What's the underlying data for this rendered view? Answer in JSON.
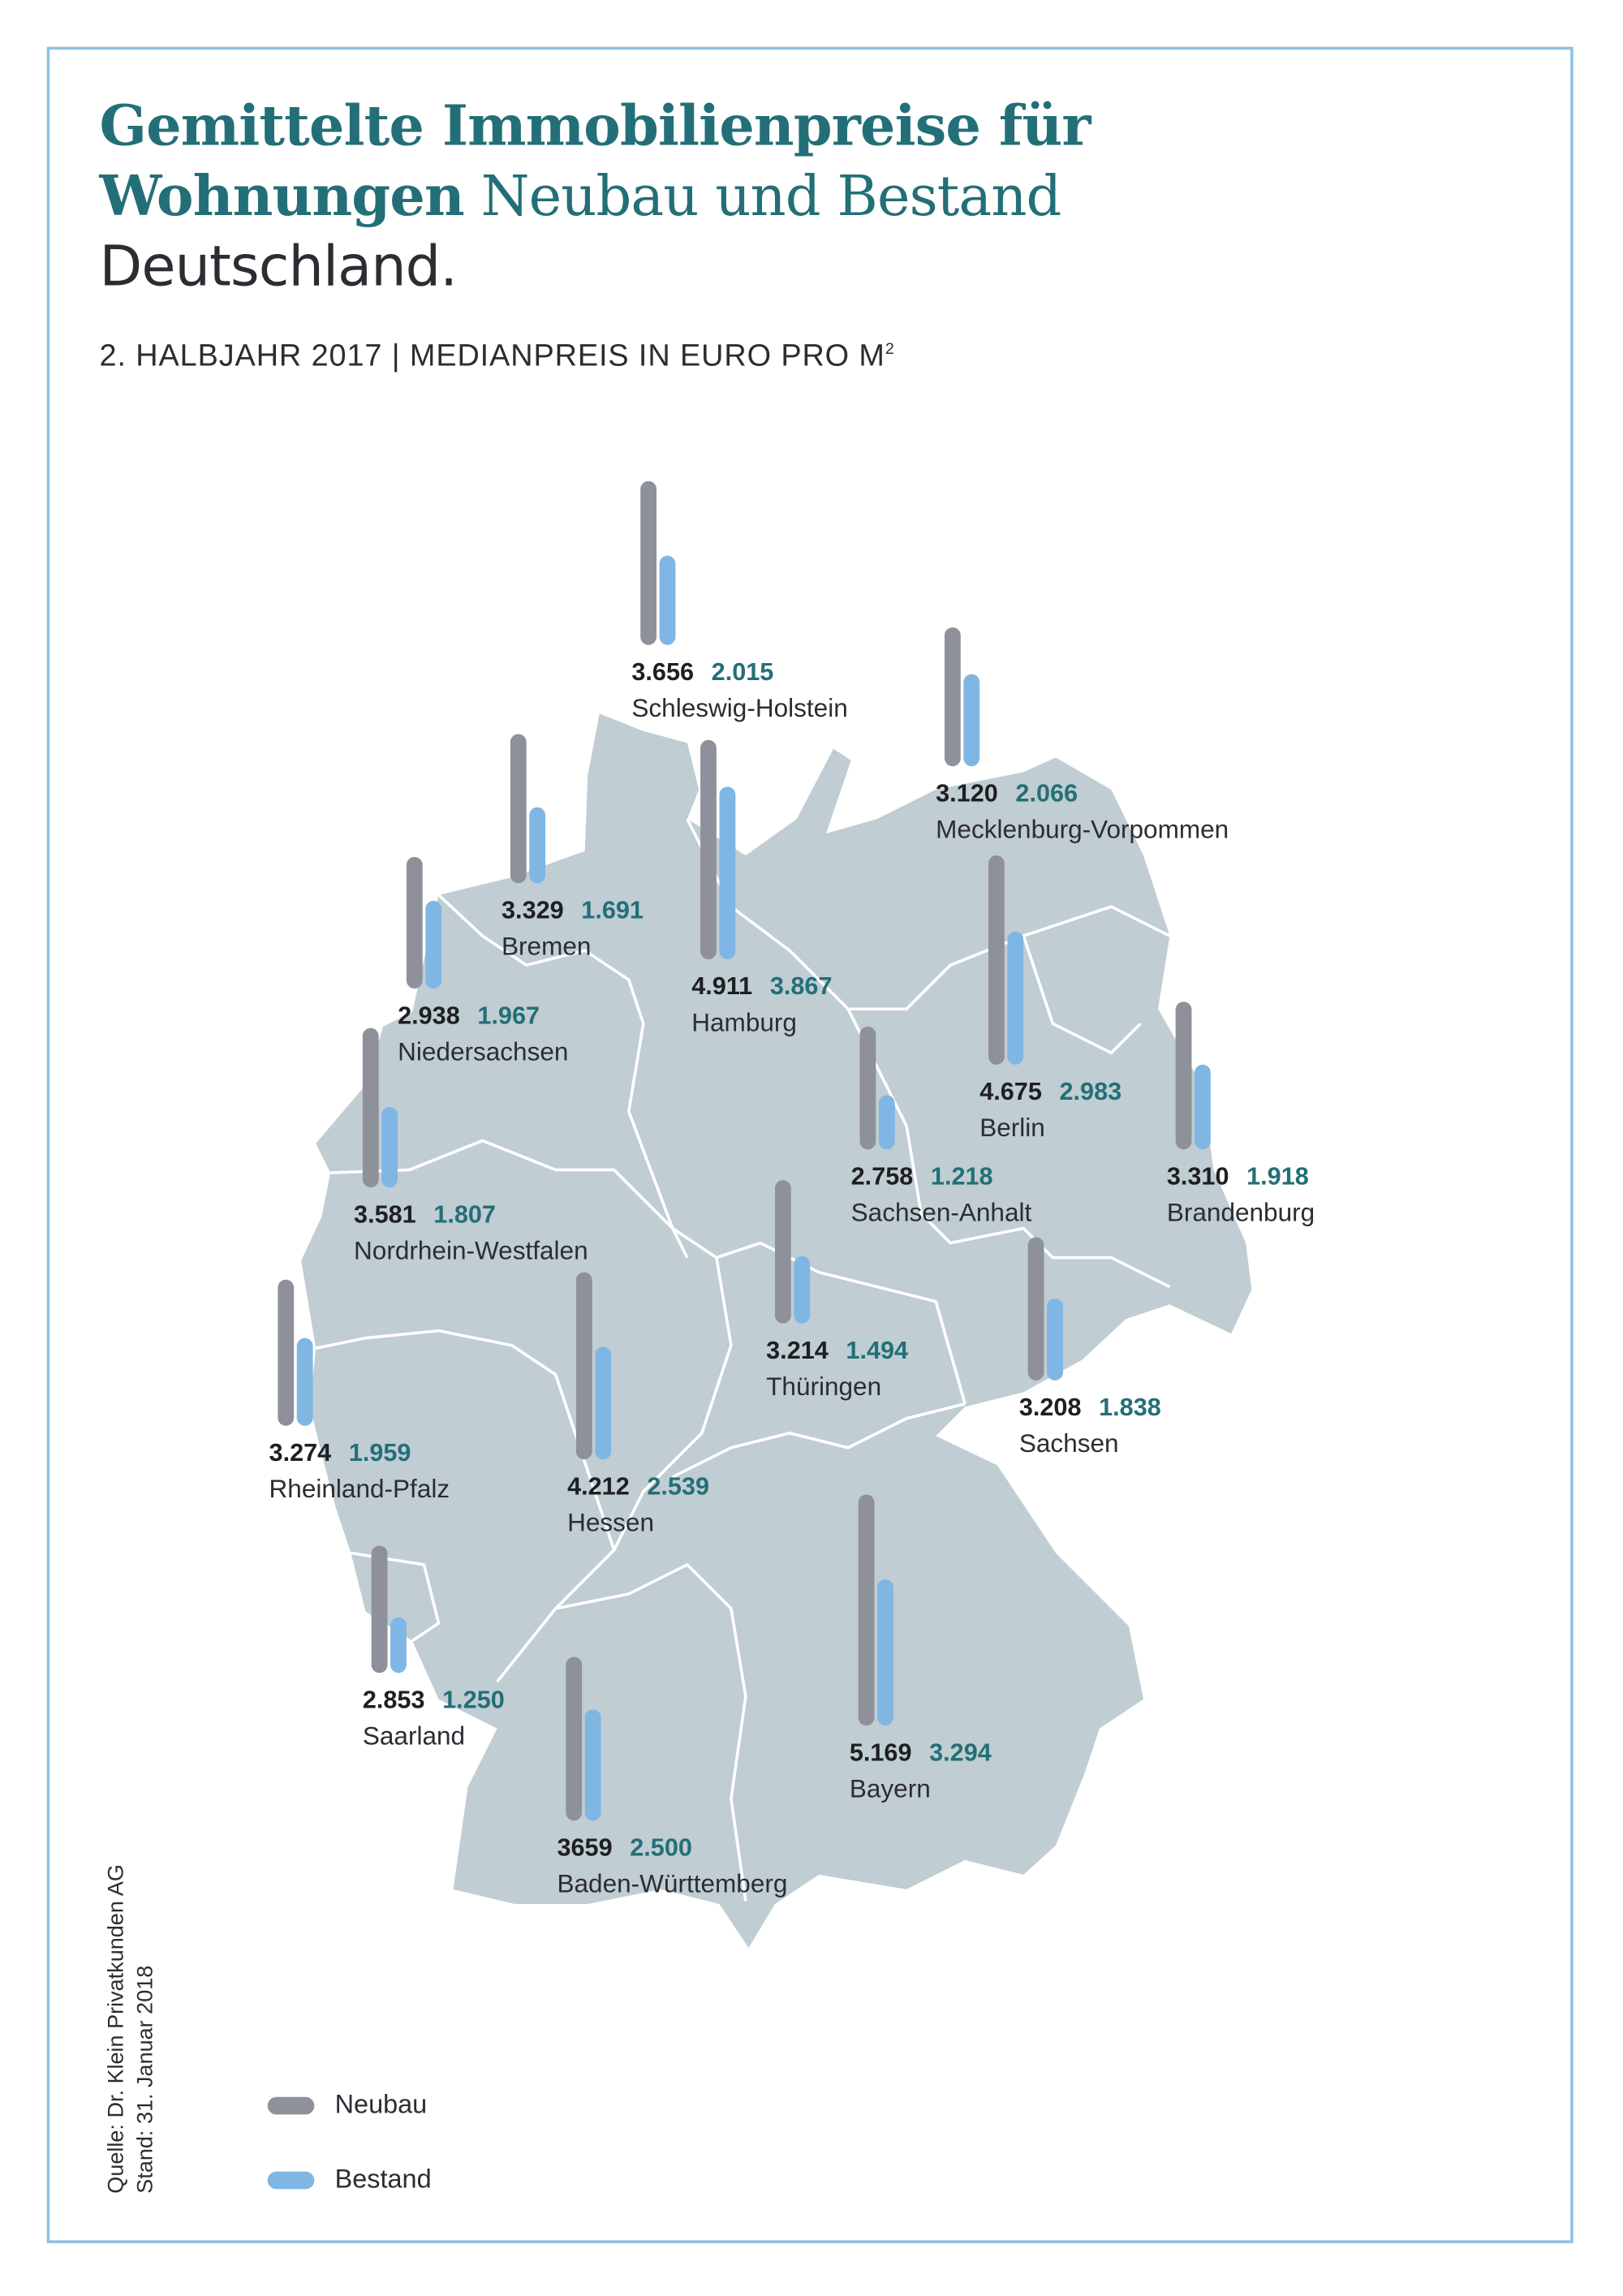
{
  "title": {
    "line1": "Gemittelte Immobilienpreise für",
    "line2_bold": "Wohnungen",
    "line2_light": "Neubau und Bestand",
    "line3": "Deutschland."
  },
  "subtitle": {
    "text": "2. HALBJAHR 2017 | MEDIANPREIS IN EURO PRO M",
    "sup": "2"
  },
  "source": {
    "line1": "Quelle: Dr. Klein Privatkunden AG",
    "line2": "Stand: 31. Januar 2018"
  },
  "legend": {
    "neubau": "Neubau",
    "bestand": "Bestand"
  },
  "colors": {
    "neubau": "#8e9199",
    "bestand": "#7fb6e3",
    "teal": "#236f77",
    "map": "#c0cdd3",
    "frame": "#8fc1e3"
  },
  "chart_data": {
    "type": "bar",
    "title": "Gemittelte Immobilienpreise für Wohnungen Neubau und Bestand Deutschland.",
    "subtitle": "2. Halbjahr 2017 | Medianpreis in Euro pro m²",
    "unit": "EUR/m²",
    "series_names": [
      "Neubau",
      "Bestand"
    ],
    "regions": [
      {
        "name": "Schleswig-Holstein",
        "neubau": 3656,
        "bestand": 2015,
        "neubau_label": "3.656",
        "bestand_label": "2.015"
      },
      {
        "name": "Mecklenburg-Vorpommen",
        "neubau": 3120,
        "bestand": 2066,
        "neubau_label": "3.120",
        "bestand_label": "2.066"
      },
      {
        "name": "Bremen",
        "neubau": 3329,
        "bestand": 1691,
        "neubau_label": "3.329",
        "bestand_label": "1.691"
      },
      {
        "name": "Niedersachsen",
        "neubau": 2938,
        "bestand": 1967,
        "neubau_label": "2.938",
        "bestand_label": "1.967"
      },
      {
        "name": "Hamburg",
        "neubau": 4911,
        "bestand": 3867,
        "neubau_label": "4.911",
        "bestand_label": "3.867"
      },
      {
        "name": "Berlin",
        "neubau": 4675,
        "bestand": 2983,
        "neubau_label": "4.675",
        "bestand_label": "2.983"
      },
      {
        "name": "Brandenburg",
        "neubau": 3310,
        "bestand": 1918,
        "neubau_label": "3.310",
        "bestand_label": "1.918"
      },
      {
        "name": "Sachsen-Anhalt",
        "neubau": 2758,
        "bestand": 1218,
        "neubau_label": "2.758",
        "bestand_label": "1.218"
      },
      {
        "name": "Nordrhein-Westfalen",
        "neubau": 3581,
        "bestand": 1807,
        "neubau_label": "3.581",
        "bestand_label": "1.807"
      },
      {
        "name": "Thüringen",
        "neubau": 3214,
        "bestand": 1494,
        "neubau_label": "3.214",
        "bestand_label": "1.494"
      },
      {
        "name": "Sachsen",
        "neubau": 3208,
        "bestand": 1838,
        "neubau_label": "3.208",
        "bestand_label": "1.838"
      },
      {
        "name": "Rheinland-Pfalz",
        "neubau": 3274,
        "bestand": 1959,
        "neubau_label": "3.274",
        "bestand_label": "1.959"
      },
      {
        "name": "Hessen",
        "neubau": 4212,
        "bestand": 2539,
        "neubau_label": "4.212",
        "bestand_label": "2.539"
      },
      {
        "name": "Saarland",
        "neubau": 2853,
        "bestand": 1250,
        "neubau_label": "2.853",
        "bestand_label": "1.250"
      },
      {
        "name": "Bayern",
        "neubau": 5169,
        "bestand": 3294,
        "neubau_label": "5.169",
        "bestand_label": "3.294"
      },
      {
        "name": "Baden-Württemberg",
        "neubau": 3659,
        "bestand": 2500,
        "neubau_label": "3659",
        "bestand_label": "2.500"
      }
    ]
  }
}
